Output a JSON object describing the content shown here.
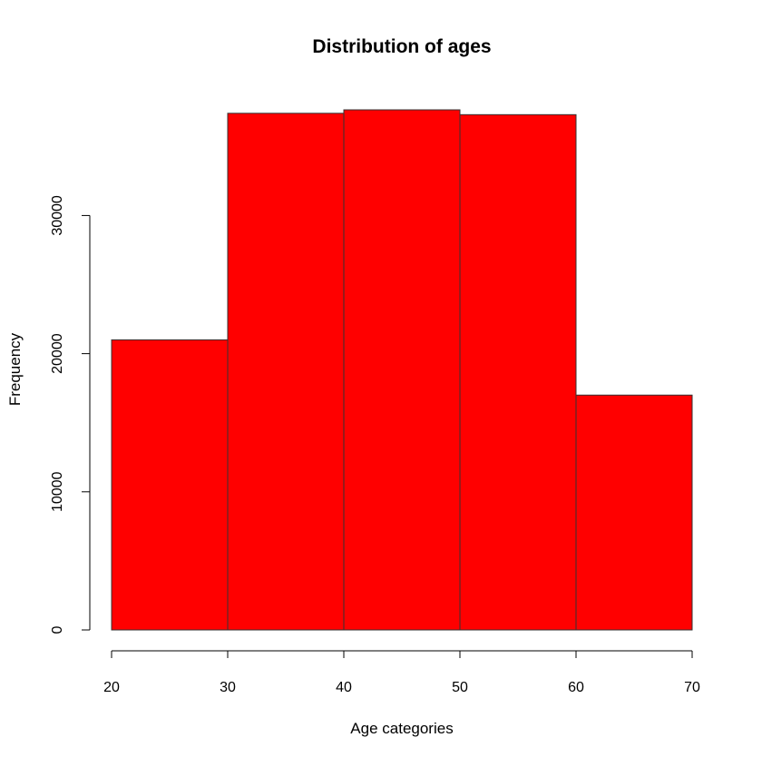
{
  "chart_data": {
    "type": "bar",
    "title": "Distribution of ages",
    "xlabel": "Age categories",
    "ylabel": "Frequency",
    "bins": [
      {
        "from": 20,
        "to": 30,
        "value": 21000
      },
      {
        "from": 30,
        "to": 40,
        "value": 37400
      },
      {
        "from": 40,
        "to": 50,
        "value": 37650
      },
      {
        "from": 50,
        "to": 60,
        "value": 37300
      },
      {
        "from": 60,
        "to": 70,
        "value": 17000
      }
    ],
    "xlim": [
      20,
      70
    ],
    "ylim": [
      0,
      37650
    ],
    "x_ticks": [
      "20",
      "30",
      "40",
      "50",
      "60",
      "70"
    ],
    "y_ticks": [
      "0",
      "10000",
      "20000",
      "30000"
    ],
    "grid": false,
    "bar_color": "#ff0000",
    "bar_border_color": "#333333"
  }
}
